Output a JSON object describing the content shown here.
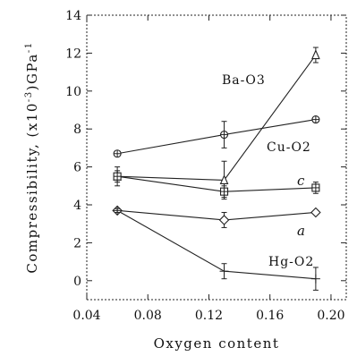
{
  "chart_data": {
    "type": "line",
    "xlabel": "Oxygen content",
    "ylabel": "Compressibility, (x10",
    "ylabel_exp": "-3",
    "ylabel_unit": ")GPa",
    "ylabel_unit_exp": "-1",
    "xlim": [
      0.04,
      0.21
    ],
    "ylim": [
      -1,
      14
    ],
    "xticks": [
      0.04,
      0.08,
      0.12,
      0.16,
      0.2
    ],
    "xtick_labels": [
      "0.04",
      "0.08",
      "0.12",
      "0.16",
      "0.20"
    ],
    "yticks": [
      0,
      2,
      4,
      6,
      8,
      10,
      12,
      14
    ],
    "ytick_labels": [
      "0",
      "2",
      "4",
      "6",
      "8",
      "10",
      "12",
      "14"
    ],
    "grid": false,
    "series": [
      {
        "name": "Ba-O3",
        "marker": "triangle",
        "x": [
          0.06,
          0.13,
          0.19
        ],
        "y": [
          5.5,
          5.3,
          11.9
        ],
        "err": [
          0.5,
          1.0,
          0.4
        ]
      },
      {
        "name": "Cu-O2",
        "marker": "circle-plus",
        "x": [
          0.06,
          0.13,
          0.19
        ],
        "y": [
          6.7,
          7.7,
          8.5
        ],
        "err": [
          0,
          0.7,
          0
        ]
      },
      {
        "name": "c",
        "marker": "square",
        "x": [
          0.06,
          0.13,
          0.19
        ],
        "y": [
          5.5,
          4.7,
          4.9
        ],
        "err": [
          0.3,
          0.3,
          0.3
        ]
      },
      {
        "name": "a",
        "marker": "diamond",
        "x": [
          0.06,
          0.13,
          0.19
        ],
        "y": [
          3.7,
          3.2,
          3.6
        ],
        "err": [
          0.1,
          0.4,
          0.1
        ]
      },
      {
        "name": "Hg-O2",
        "marker": "plus",
        "x": [
          0.06,
          0.13,
          0.19
        ],
        "y": [
          3.7,
          0.5,
          0.1
        ],
        "err": [
          0.1,
          0.4,
          0.6
        ]
      }
    ]
  }
}
